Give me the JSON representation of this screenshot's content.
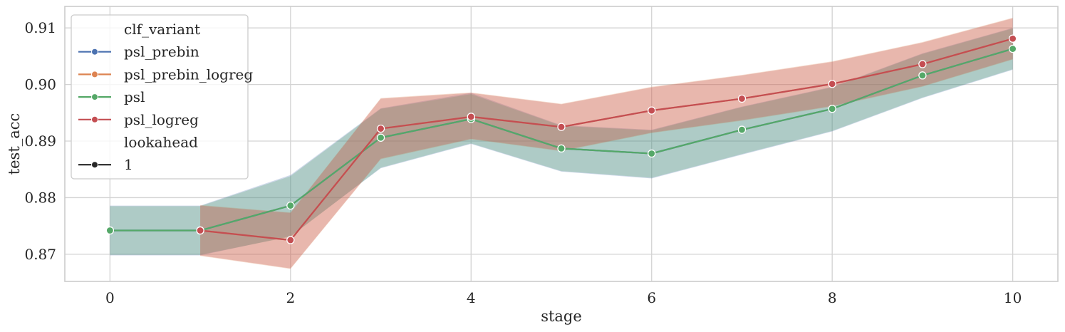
{
  "chart_data": {
    "type": "line",
    "xlabel": "stage",
    "ylabel": "test_acc",
    "xlim": [
      -0.5,
      10.5
    ],
    "ylim": [
      0.8652,
      0.9138
    ],
    "xticks": [
      0,
      2,
      4,
      6,
      8,
      10
    ],
    "xtick_labels": [
      "0",
      "2",
      "4",
      "6",
      "8",
      "10"
    ],
    "yticks": [
      0.87,
      0.88,
      0.89,
      0.9,
      0.91
    ],
    "ytick_labels": [
      "0.87",
      "0.88",
      "0.89",
      "0.90",
      "0.91"
    ],
    "grid": true,
    "legend": {
      "placement": "top-left",
      "entries": [
        {
          "label": "clf_variant",
          "kind": "header"
        },
        {
          "label": "psl_prebin",
          "kind": "series",
          "color": "#4c72b0"
        },
        {
          "label": "psl_prebin_logreg",
          "kind": "series",
          "color": "#dd8452"
        },
        {
          "label": "psl",
          "kind": "series",
          "color": "#55a868"
        },
        {
          "label": "psl_logreg",
          "kind": "series",
          "color": "#c44e52"
        },
        {
          "label": "lookahead",
          "kind": "header"
        },
        {
          "label": "1",
          "kind": "series",
          "color": "#262626"
        }
      ]
    },
    "series": [
      {
        "name": "psl_prebin",
        "color": "#4c72b0",
        "x": [
          0,
          1,
          2,
          3,
          4,
          5,
          6,
          7,
          8,
          9,
          10
        ],
        "values": [
          0.8742,
          0.8742,
          0.8786,
          0.8906,
          0.8939,
          0.8887,
          0.8878,
          0.892,
          0.8957,
          0.9016,
          0.9063
        ],
        "ci_low": [
          0.8698,
          0.8698,
          0.8732,
          0.8852,
          0.8895,
          0.8846,
          0.8834,
          0.8876,
          0.8917,
          0.8976,
          0.9026
        ],
        "ci_high": [
          0.8786,
          0.8786,
          0.884,
          0.8958,
          0.8985,
          0.8928,
          0.892,
          0.8961,
          0.8996,
          0.9055,
          0.91
        ]
      },
      {
        "name": "psl_prebin_logreg",
        "color": "#dd8452",
        "x": [
          1,
          2,
          3,
          4,
          5,
          6,
          7,
          8,
          9,
          10
        ],
        "values": [
          0.8742,
          0.8725,
          0.8922,
          0.8943,
          0.8925,
          0.8954,
          0.8975,
          0.9001,
          0.9036,
          0.9081
        ],
        "ci_low": [
          0.8697,
          0.8674,
          0.8868,
          0.8903,
          0.8882,
          0.8914,
          0.8936,
          0.8961,
          0.8996,
          0.9044
        ],
        "ci_high": [
          0.8787,
          0.8774,
          0.8976,
          0.8986,
          0.8966,
          0.8996,
          0.9017,
          0.9041,
          0.9075,
          0.9118
        ]
      },
      {
        "name": "psl",
        "color": "#55a868",
        "x": [
          0,
          1,
          2,
          3,
          4,
          5,
          6,
          7,
          8,
          9,
          10
        ],
        "values": [
          0.8742,
          0.8742,
          0.8786,
          0.8906,
          0.8939,
          0.8887,
          0.8878,
          0.892,
          0.8957,
          0.9016,
          0.9063
        ],
        "ci_low": [
          0.8699,
          0.8699,
          0.8731,
          0.8853,
          0.8896,
          0.8847,
          0.8835,
          0.8877,
          0.8918,
          0.8977,
          0.9027
        ],
        "ci_high": [
          0.8785,
          0.8785,
          0.8838,
          0.8957,
          0.8983,
          0.8927,
          0.8919,
          0.896,
          0.8995,
          0.9054,
          0.9099
        ]
      },
      {
        "name": "psl_logreg",
        "color": "#c44e52",
        "x": [
          1,
          2,
          3,
          4,
          5,
          6,
          7,
          8,
          9,
          10
        ],
        "values": [
          0.8742,
          0.8725,
          0.8922,
          0.8943,
          0.8925,
          0.8954,
          0.8975,
          0.9001,
          0.9036,
          0.9081
        ],
        "ci_low": [
          0.8698,
          0.8675,
          0.8869,
          0.8904,
          0.8883,
          0.8915,
          0.8937,
          0.8962,
          0.8997,
          0.9045
        ],
        "ci_high": [
          0.8786,
          0.8773,
          0.8975,
          0.8985,
          0.8965,
          0.8995,
          0.9016,
          0.904,
          0.9074,
          0.9117
        ]
      }
    ]
  }
}
